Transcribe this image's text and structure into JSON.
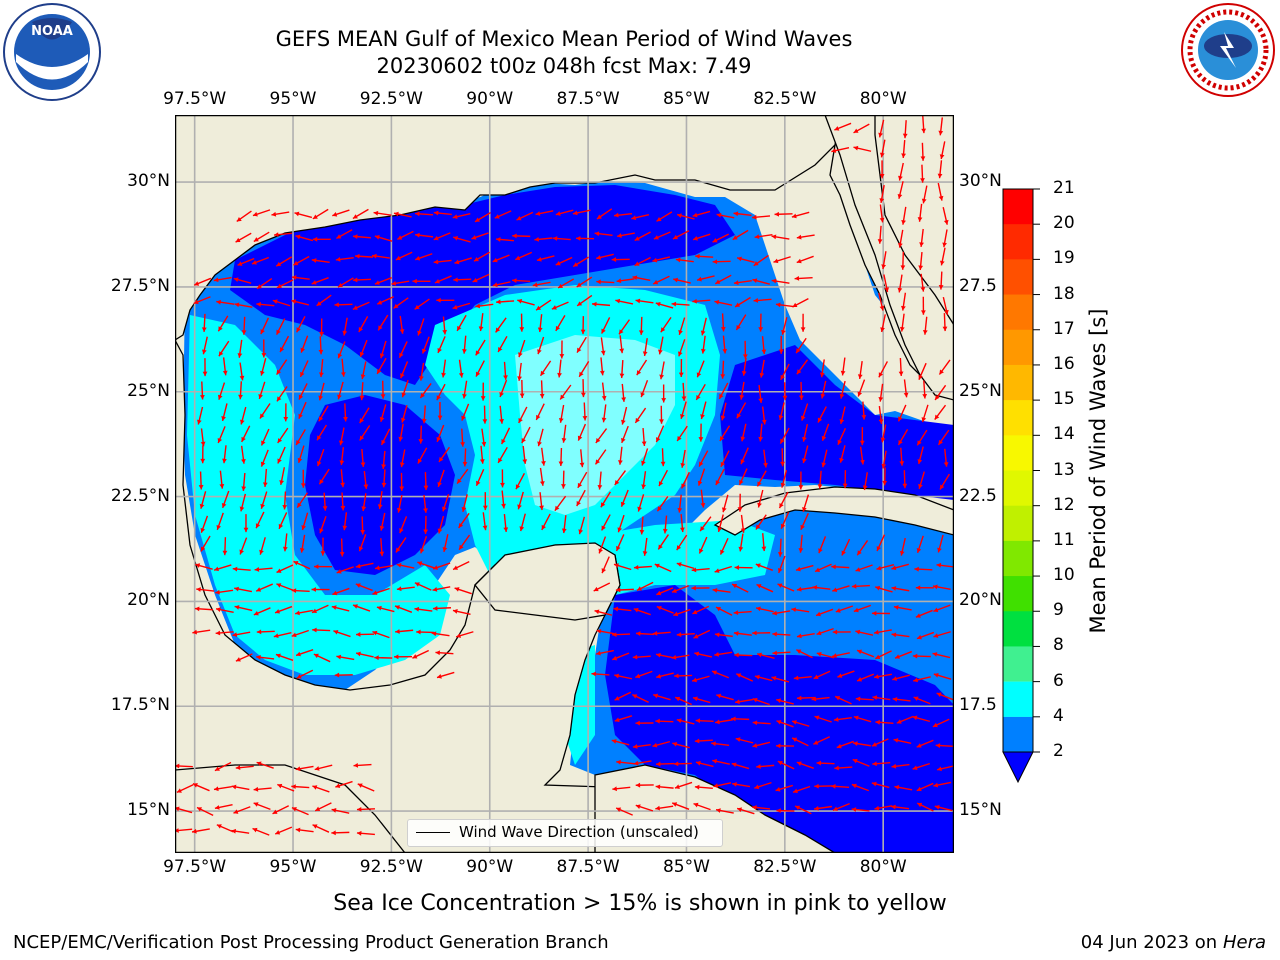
{
  "header": {
    "title": "GEFS MEAN Gulf of Mexico Mean Period of Wind Waves",
    "subtitle": "20230602 t00z 048h fcst   Max: 7.49"
  },
  "logos": {
    "left": {
      "name": "noaa-logo",
      "text": "NOAA",
      "ring_text": "NATIONAL OCEANIC AND ATMOSPHERIC ADMINISTRATION · U.S. DEPARTMENT OF COMMERCE"
    },
    "right": {
      "name": "nws-logo",
      "ring_text": "NATIONAL WEATHER SERVICE"
    }
  },
  "axes": {
    "lon_ticks": [
      "97.5°W",
      "95°W",
      "92.5°W",
      "90°W",
      "87.5°W",
      "85°W",
      "82.5°W",
      "80°W"
    ],
    "lon_values": [
      -97.5,
      -95,
      -92.5,
      -90,
      -87.5,
      -85,
      -82.5,
      -80
    ],
    "lat_ticks": [
      "30°N",
      "27.5°N",
      "25°N",
      "22.5°N",
      "20°N",
      "17.5°N",
      "15°N"
    ],
    "lat_values": [
      30,
      27.5,
      25,
      22.5,
      20,
      17.5,
      15
    ],
    "right_lat_ticks": [
      "30°N",
      "27.5",
      "25°N",
      "22.5",
      "20°N",
      "17.5",
      "15°N"
    ],
    "extent": {
      "lon_min": -98,
      "lon_max": -78.2,
      "lat_min": 14,
      "lat_max": 31.6
    }
  },
  "colorbar": {
    "label": "Mean Period of Wind Waves [s]",
    "ticks": [
      "21",
      "20",
      "19",
      "18",
      "17",
      "16",
      "15",
      "14",
      "13",
      "12",
      "11",
      "10",
      "9",
      "8",
      "6",
      "4",
      "2"
    ],
    "colors": [
      "#ff0000",
      "#ff2000",
      "#ff4000",
      "#ff6000",
      "#ff8000",
      "#ffb000",
      "#ffd000",
      "#fff000",
      "#e8f800",
      "#c8f000",
      "#a0e800",
      "#60e000",
      "#00e000",
      "#40e880",
      "#a0ffff",
      "#40ffff",
      "#00e8ff",
      "#0080ff"
    ],
    "under_color": "#0000ff"
  },
  "legend": {
    "label": "Wind Wave Direction (unscaled)"
  },
  "caption": "Sea Ice Concentration > 15% is shown in pink to yellow",
  "footer": {
    "left": "NCEP/EMC/Verification Post Processing Product Generation Branch",
    "right_date": "04 Jun 2023 on",
    "right_host": "Hera"
  },
  "map_colors": {
    "land": "#efedda",
    "band_2_4": "#0080ff",
    "band_lt_2": "#0000ff",
    "band_4_6": "#00ffff",
    "band_6_8": "#80ffff",
    "arrows": "#ff0000",
    "grid": "#b0b0b0"
  }
}
